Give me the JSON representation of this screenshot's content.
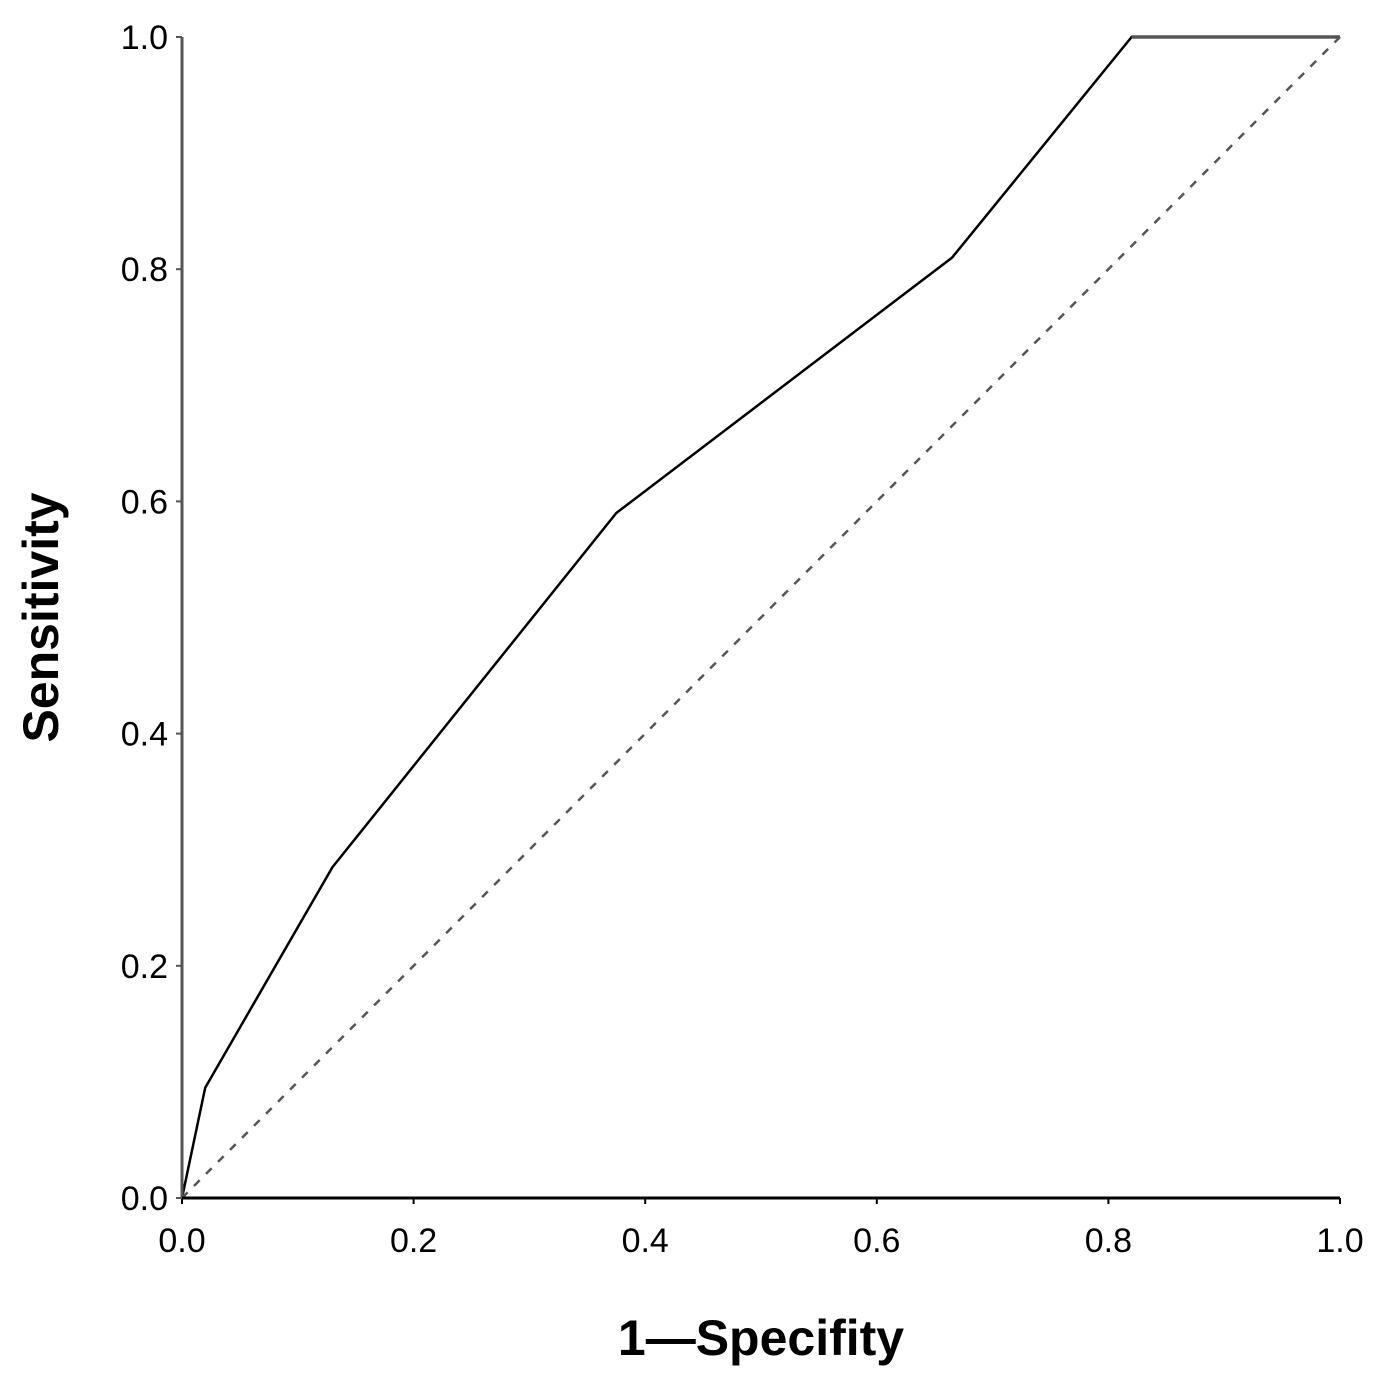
{
  "chart_data": {
    "type": "line",
    "title": "",
    "xlabel": "1—Specifity",
    "ylabel": "Sensitivity",
    "xlim": [
      0,
      1
    ],
    "ylim": [
      0,
      1
    ],
    "x_ticks": [
      0.0,
      0.2,
      0.4,
      0.6,
      0.8,
      1.0
    ],
    "x_tick_labels": [
      "0.0",
      "0.2",
      "0.4",
      "0.6",
      "0.8",
      "1.0"
    ],
    "y_ticks": [
      0.0,
      0.2,
      0.4,
      0.6,
      0.8,
      1.0
    ],
    "y_tick_labels": [
      "0.0",
      "0.2",
      "0.4",
      "0.6",
      "0.8",
      "1.0"
    ],
    "grid": false,
    "legend": "none",
    "series": [
      {
        "style": "solid",
        "color": "#000000",
        "x": [
          0.0,
          0.02,
          0.13,
          0.375,
          0.665,
          0.82,
          1.0
        ],
        "y": [
          0.0,
          0.095,
          0.285,
          0.59,
          0.81,
          1.0,
          1.0
        ]
      },
      {
        "style": "dashed",
        "color": "#555555",
        "x": [
          0.0,
          1.0
        ],
        "y": [
          0.0,
          1.0
        ]
      }
    ]
  }
}
